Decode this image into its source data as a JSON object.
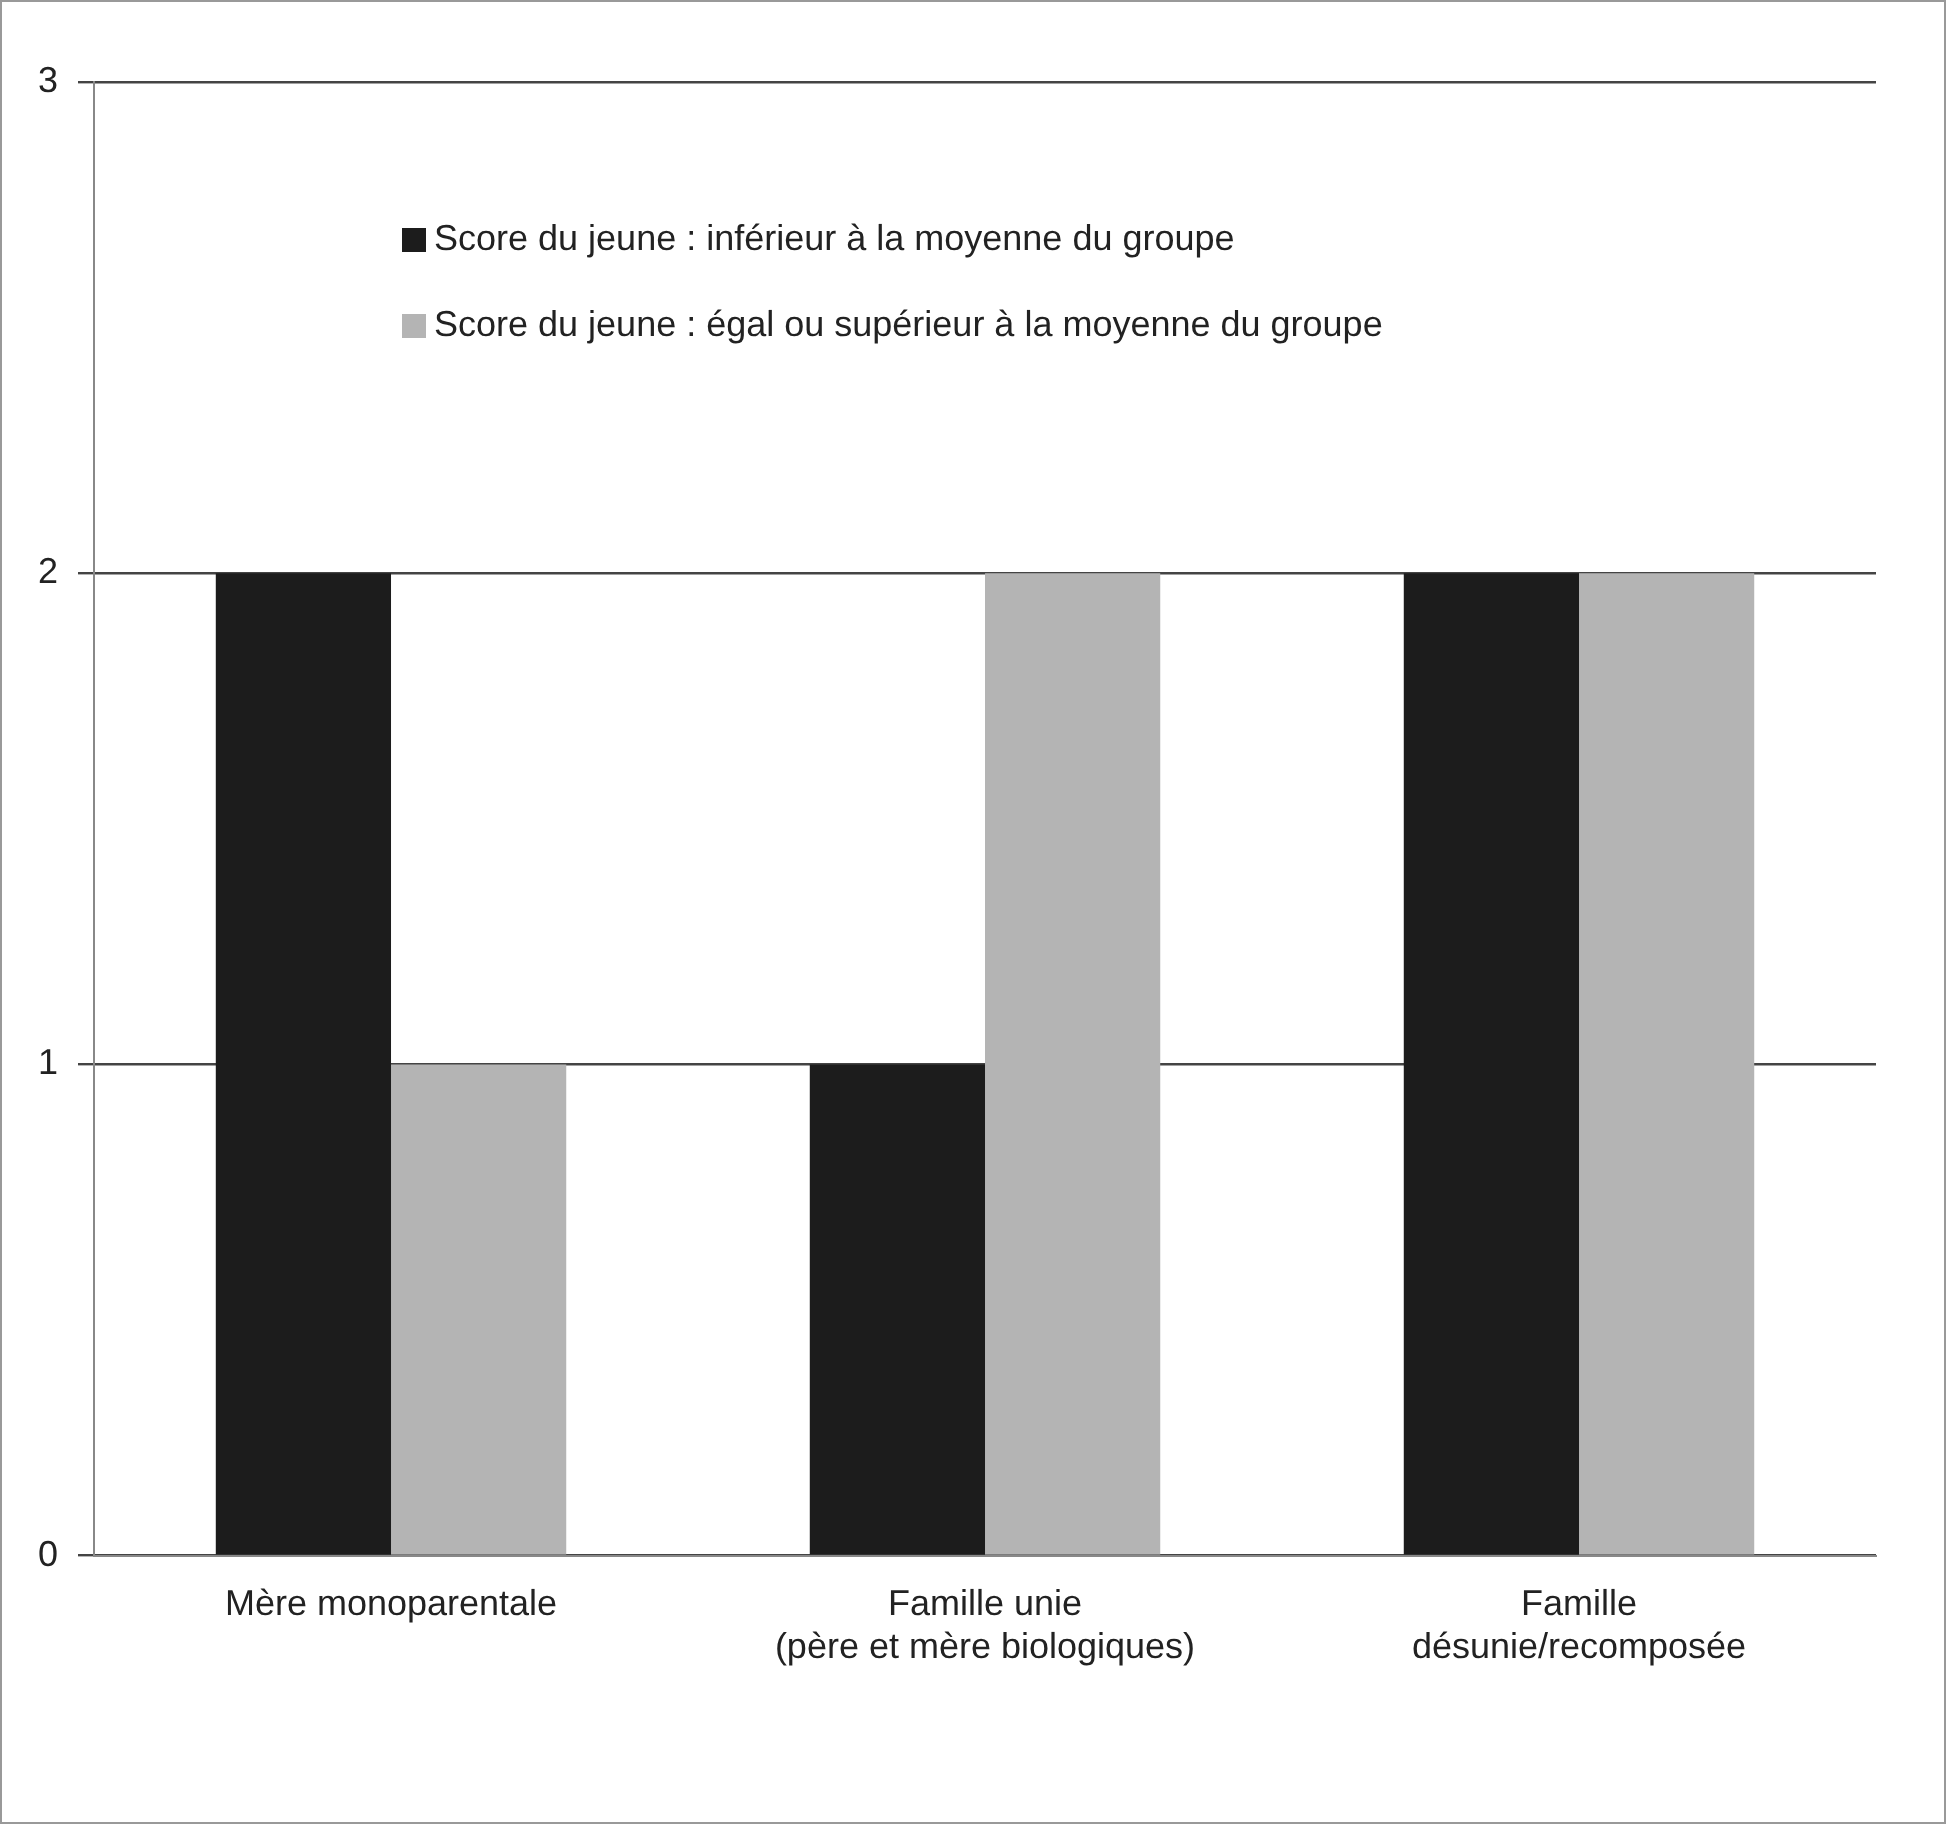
{
  "chart_data": {
    "type": "bar",
    "categories": [
      "Mère monoparentale",
      "Famille unie\n(père et mère biologiques)",
      "Famille\ndésunie/recomposée"
    ],
    "series": [
      {
        "name": "Score du jeune : inférieur à la moyenne du groupe",
        "color": "#1c1c1c",
        "values": [
          2,
          1,
          2
        ]
      },
      {
        "name": "Score du jeune : égal ou supérieur à la moyenne du groupe",
        "color": "#b4b4b4",
        "values": [
          1,
          2,
          2
        ]
      }
    ],
    "ylim": [
      0,
      3
    ],
    "yticks": [
      0,
      1,
      2,
      3
    ],
    "grid": "y",
    "legend": "top left"
  }
}
